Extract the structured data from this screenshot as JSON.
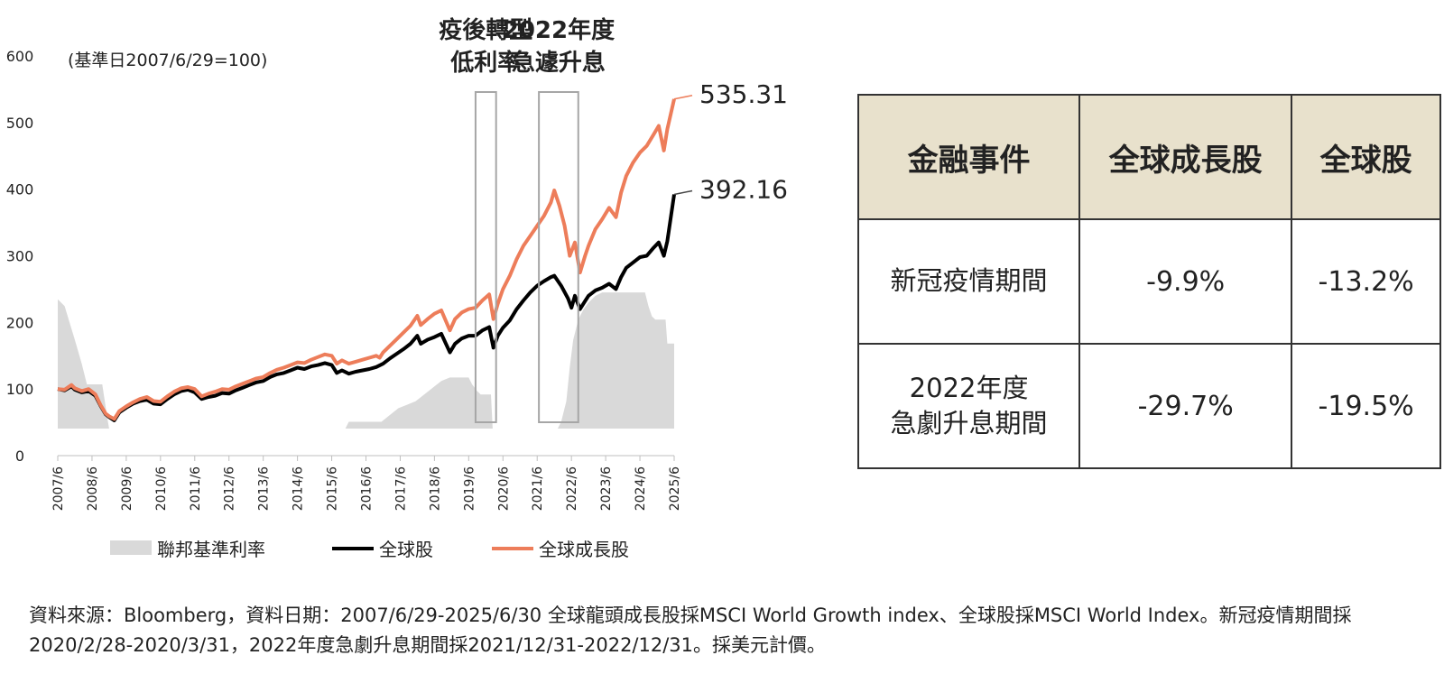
{
  "chart_data": {
    "type": "line",
    "base_note": "(基準日2007/6/29=100)",
    "y_ticks": [
      "0",
      "100",
      "200",
      "300",
      "400",
      "500",
      "600"
    ],
    "ylim": [
      0,
      600
    ],
    "x_ticks": [
      "2007/6",
      "2008/6",
      "2009/6",
      "2010/6",
      "2011/6",
      "2012/6",
      "2013/6",
      "2014/6",
      "2015/6",
      "2016/6",
      "2017/6",
      "2018/6",
      "2019/6",
      "2020/6",
      "2021/6",
      "2022/6",
      "2023/6",
      "2024/6",
      "2025/6"
    ],
    "xlim": [
      2007.5,
      2025.5
    ],
    "highlight_periods": [
      {
        "label_lines": [
          "疫後轉型",
          "低利率"
        ],
        "start": 2019.7,
        "end": 2020.3
      },
      {
        "label_lines": [
          "2022年度",
          "急遽升息"
        ],
        "start": 2021.55,
        "end": 2022.7
      }
    ],
    "series": [
      {
        "name": "聯邦基準利率",
        "style": "area",
        "color": "#d9d9d9",
        "points": [
          [
            2007.5,
            235
          ],
          [
            2007.7,
            225
          ],
          [
            2007.85,
            200
          ],
          [
            2008.0,
            175
          ],
          [
            2008.2,
            140
          ],
          [
            2008.35,
            110
          ],
          [
            2008.5,
            110
          ],
          [
            2008.8,
            110
          ],
          [
            2008.95,
            60
          ],
          [
            2009.0,
            45
          ],
          [
            2015.9,
            45
          ],
          [
            2016.0,
            55
          ],
          [
            2016.95,
            55
          ],
          [
            2017.2,
            65
          ],
          [
            2017.45,
            75
          ],
          [
            2017.7,
            80
          ],
          [
            2017.95,
            85
          ],
          [
            2018.2,
            95
          ],
          [
            2018.45,
            105
          ],
          [
            2018.7,
            115
          ],
          [
            2018.95,
            120
          ],
          [
            2019.5,
            120
          ],
          [
            2019.6,
            110
          ],
          [
            2019.75,
            100
          ],
          [
            2019.85,
            95
          ],
          [
            2020.15,
            95
          ],
          [
            2020.2,
            45
          ],
          [
            2022.1,
            45
          ],
          [
            2022.2,
            55
          ],
          [
            2022.35,
            85
          ],
          [
            2022.45,
            135
          ],
          [
            2022.55,
            175
          ],
          [
            2022.7,
            205
          ],
          [
            2022.85,
            220
          ],
          [
            2023.0,
            230
          ],
          [
            2023.2,
            240
          ],
          [
            2023.4,
            245
          ],
          [
            2024.2,
            245
          ],
          [
            2024.65,
            245
          ],
          [
            2024.75,
            225
          ],
          [
            2024.85,
            210
          ],
          [
            2024.95,
            205
          ],
          [
            2025.25,
            205
          ],
          [
            2025.3,
            170
          ],
          [
            2025.5,
            170
          ]
        ]
      },
      {
        "name": "全球股",
        "style": "line",
        "color": "#000000",
        "end_label": "392.16",
        "points": [
          [
            2007.5,
            100
          ],
          [
            2007.7,
            98
          ],
          [
            2007.9,
            104
          ],
          [
            2008.0,
            99
          ],
          [
            2008.2,
            95
          ],
          [
            2008.4,
            97
          ],
          [
            2008.6,
            90
          ],
          [
            2008.75,
            75
          ],
          [
            2008.9,
            62
          ],
          [
            2009.0,
            58
          ],
          [
            2009.15,
            53
          ],
          [
            2009.3,
            65
          ],
          [
            2009.5,
            72
          ],
          [
            2009.7,
            78
          ],
          [
            2009.9,
            82
          ],
          [
            2010.1,
            84
          ],
          [
            2010.3,
            78
          ],
          [
            2010.5,
            77
          ],
          [
            2010.7,
            85
          ],
          [
            2010.9,
            92
          ],
          [
            2011.1,
            97
          ],
          [
            2011.3,
            99
          ],
          [
            2011.5,
            95
          ],
          [
            2011.7,
            85
          ],
          [
            2011.9,
            88
          ],
          [
            2012.1,
            90
          ],
          [
            2012.3,
            94
          ],
          [
            2012.5,
            93
          ],
          [
            2012.7,
            98
          ],
          [
            2012.9,
            102
          ],
          [
            2013.1,
            106
          ],
          [
            2013.3,
            110
          ],
          [
            2013.5,
            112
          ],
          [
            2013.7,
            118
          ],
          [
            2013.9,
            122
          ],
          [
            2014.1,
            124
          ],
          [
            2014.3,
            128
          ],
          [
            2014.5,
            132
          ],
          [
            2014.7,
            130
          ],
          [
            2014.9,
            134
          ],
          [
            2015.1,
            136
          ],
          [
            2015.3,
            139
          ],
          [
            2015.5,
            136
          ],
          [
            2015.65,
            124
          ],
          [
            2015.8,
            128
          ],
          [
            2016.0,
            123
          ],
          [
            2016.2,
            126
          ],
          [
            2016.4,
            128
          ],
          [
            2016.6,
            130
          ],
          [
            2016.8,
            133
          ],
          [
            2017.0,
            138
          ],
          [
            2017.2,
            146
          ],
          [
            2017.4,
            153
          ],
          [
            2017.6,
            160
          ],
          [
            2017.8,
            168
          ],
          [
            2018.0,
            180
          ],
          [
            2018.1,
            168
          ],
          [
            2018.3,
            174
          ],
          [
            2018.5,
            178
          ],
          [
            2018.7,
            183
          ],
          [
            2018.95,
            155
          ],
          [
            2019.1,
            168
          ],
          [
            2019.3,
            176
          ],
          [
            2019.5,
            180
          ],
          [
            2019.7,
            180
          ],
          [
            2019.9,
            188
          ],
          [
            2020.1,
            193
          ],
          [
            2020.22,
            162
          ],
          [
            2020.35,
            180
          ],
          [
            2020.5,
            192
          ],
          [
            2020.7,
            203
          ],
          [
            2020.9,
            220
          ],
          [
            2021.1,
            233
          ],
          [
            2021.3,
            245
          ],
          [
            2021.5,
            255
          ],
          [
            2021.7,
            262
          ],
          [
            2021.9,
            268
          ],
          [
            2022.0,
            270
          ],
          [
            2022.2,
            255
          ],
          [
            2022.4,
            236
          ],
          [
            2022.5,
            222
          ],
          [
            2022.6,
            240
          ],
          [
            2022.75,
            220
          ],
          [
            2022.9,
            232
          ],
          [
            2023.0,
            240
          ],
          [
            2023.2,
            248
          ],
          [
            2023.4,
            252
          ],
          [
            2023.6,
            258
          ],
          [
            2023.8,
            250
          ],
          [
            2023.95,
            268
          ],
          [
            2024.1,
            282
          ],
          [
            2024.3,
            290
          ],
          [
            2024.5,
            298
          ],
          [
            2024.7,
            300
          ],
          [
            2024.9,
            312
          ],
          [
            2025.05,
            320
          ],
          [
            2025.2,
            300
          ],
          [
            2025.3,
            322
          ],
          [
            2025.5,
            392.16
          ]
        ]
      },
      {
        "name": "全球成長股",
        "style": "line",
        "color": "#ed7d5a",
        "end_label": "535.31",
        "points": [
          [
            2007.5,
            100
          ],
          [
            2007.7,
            99
          ],
          [
            2007.9,
            106
          ],
          [
            2008.0,
            101
          ],
          [
            2008.2,
            97
          ],
          [
            2008.4,
            100
          ],
          [
            2008.6,
            92
          ],
          [
            2008.75,
            76
          ],
          [
            2008.9,
            63
          ],
          [
            2009.0,
            59
          ],
          [
            2009.15,
            55
          ],
          [
            2009.3,
            67
          ],
          [
            2009.5,
            74
          ],
          [
            2009.7,
            80
          ],
          [
            2009.9,
            85
          ],
          [
            2010.1,
            88
          ],
          [
            2010.3,
            82
          ],
          [
            2010.5,
            81
          ],
          [
            2010.7,
            89
          ],
          [
            2010.9,
            96
          ],
          [
            2011.1,
            101
          ],
          [
            2011.3,
            103
          ],
          [
            2011.5,
            100
          ],
          [
            2011.7,
            89
          ],
          [
            2011.9,
            93
          ],
          [
            2012.1,
            96
          ],
          [
            2012.3,
            100
          ],
          [
            2012.5,
            99
          ],
          [
            2012.7,
            104
          ],
          [
            2012.9,
            108
          ],
          [
            2013.1,
            112
          ],
          [
            2013.3,
            116
          ],
          [
            2013.5,
            118
          ],
          [
            2013.7,
            124
          ],
          [
            2013.9,
            129
          ],
          [
            2014.1,
            132
          ],
          [
            2014.3,
            136
          ],
          [
            2014.5,
            140
          ],
          [
            2014.7,
            139
          ],
          [
            2014.9,
            144
          ],
          [
            2015.1,
            148
          ],
          [
            2015.3,
            152
          ],
          [
            2015.5,
            150
          ],
          [
            2015.65,
            138
          ],
          [
            2015.8,
            143
          ],
          [
            2016.0,
            138
          ],
          [
            2016.2,
            141
          ],
          [
            2016.4,
            144
          ],
          [
            2016.6,
            147
          ],
          [
            2016.8,
            150
          ],
          [
            2016.9,
            147
          ],
          [
            2017.0,
            155
          ],
          [
            2017.2,
            165
          ],
          [
            2017.4,
            175
          ],
          [
            2017.6,
            185
          ],
          [
            2017.8,
            195
          ],
          [
            2018.0,
            210
          ],
          [
            2018.1,
            196
          ],
          [
            2018.3,
            205
          ],
          [
            2018.5,
            213
          ],
          [
            2018.7,
            218
          ],
          [
            2018.95,
            188
          ],
          [
            2019.1,
            205
          ],
          [
            2019.3,
            215
          ],
          [
            2019.5,
            220
          ],
          [
            2019.7,
            222
          ],
          [
            2019.9,
            233
          ],
          [
            2020.1,
            242
          ],
          [
            2020.22,
            205
          ],
          [
            2020.35,
            228
          ],
          [
            2020.5,
            250
          ],
          [
            2020.7,
            270
          ],
          [
            2020.9,
            295
          ],
          [
            2021.1,
            315
          ],
          [
            2021.3,
            330
          ],
          [
            2021.5,
            345
          ],
          [
            2021.7,
            360
          ],
          [
            2021.9,
            380
          ],
          [
            2022.0,
            398
          ],
          [
            2022.15,
            375
          ],
          [
            2022.3,
            345
          ],
          [
            2022.45,
            300
          ],
          [
            2022.6,
            320
          ],
          [
            2022.75,
            275
          ],
          [
            2022.9,
            300
          ],
          [
            2023.0,
            315
          ],
          [
            2023.2,
            340
          ],
          [
            2023.4,
            355
          ],
          [
            2023.6,
            372
          ],
          [
            2023.8,
            358
          ],
          [
            2023.95,
            395
          ],
          [
            2024.1,
            420
          ],
          [
            2024.3,
            440
          ],
          [
            2024.5,
            455
          ],
          [
            2024.7,
            465
          ],
          [
            2024.9,
            482
          ],
          [
            2025.05,
            495
          ],
          [
            2025.2,
            458
          ],
          [
            2025.3,
            490
          ],
          [
            2025.5,
            535.31
          ]
        ]
      }
    ],
    "legend": [
      "聯邦基準利率",
      "全球股",
      "全球成長股"
    ]
  },
  "table": {
    "headers": [
      "金融事件",
      "全球成長股",
      "全球股"
    ],
    "rows": [
      [
        "新冠疫情期間",
        "-9.9%",
        "-13.2%"
      ],
      [
        "2022年度\n急劇升息期間",
        "-29.7%",
        "-19.5%"
      ]
    ]
  },
  "source_note": "資料來源：Bloomberg，資料日期：2007/6/29-2025/6/30 全球龍頭成長股採MSCI World Growth index、全球股採MSCI World Index。新冠疫情期間採2020/2/28-2020/3/31，2022年度急劇升息期間採2021/12/31-2022/12/31。採美元計價。"
}
